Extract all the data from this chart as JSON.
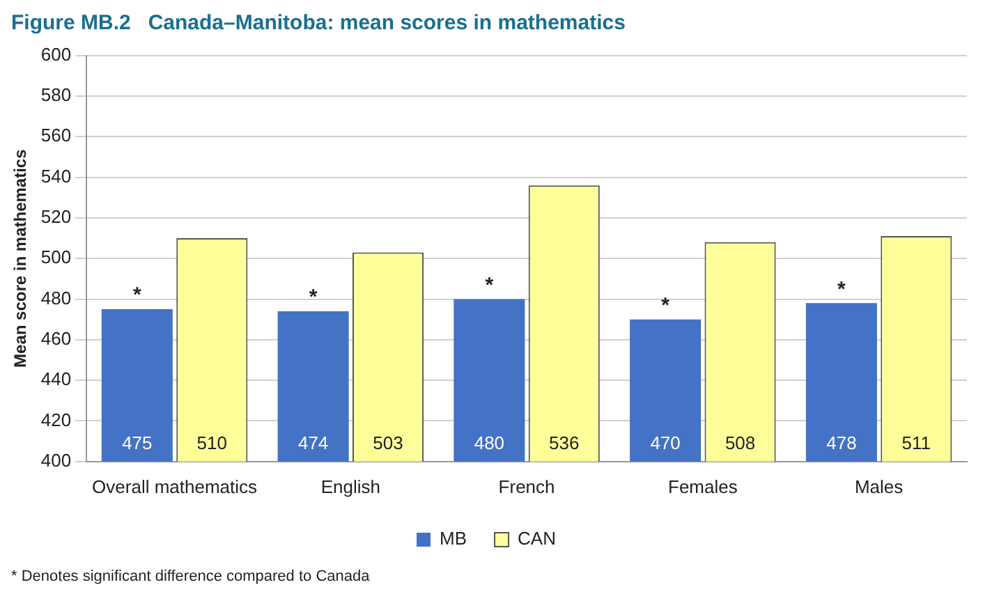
{
  "chart_data": {
    "type": "bar",
    "title": "Figure MB.2   Canada–Manitoba: mean scores in mathematics",
    "ylabel": "Mean score in mathematics",
    "categories": [
      "Overall mathematics",
      "English",
      "French",
      "Females",
      "Males"
    ],
    "series": [
      {
        "name": "MB",
        "color": "#4472c4",
        "values": [
          475,
          474,
          480,
          470,
          478
        ]
      },
      {
        "name": "CAN",
        "color": "#ffff99",
        "values": [
          510,
          503,
          536,
          508,
          511
        ]
      }
    ],
    "ylim": [
      400,
      600
    ],
    "yticks": [
      400,
      420,
      440,
      460,
      480,
      500,
      520,
      540,
      560,
      580,
      600
    ],
    "grid": "y",
    "legend": "bottom",
    "data_labels": true,
    "annotations": [
      {
        "text": "*",
        "x": "Overall mathematics",
        "y": 475
      },
      {
        "text": "*",
        "x": "English",
        "y": 474
      },
      {
        "text": "*",
        "x": "French",
        "y": 480
      },
      {
        "text": "*",
        "x": "Females",
        "y": 470
      },
      {
        "text": "*",
        "x": "Males",
        "y": 478
      },
      "* Denotes significant difference compared to Canada"
    ]
  }
}
